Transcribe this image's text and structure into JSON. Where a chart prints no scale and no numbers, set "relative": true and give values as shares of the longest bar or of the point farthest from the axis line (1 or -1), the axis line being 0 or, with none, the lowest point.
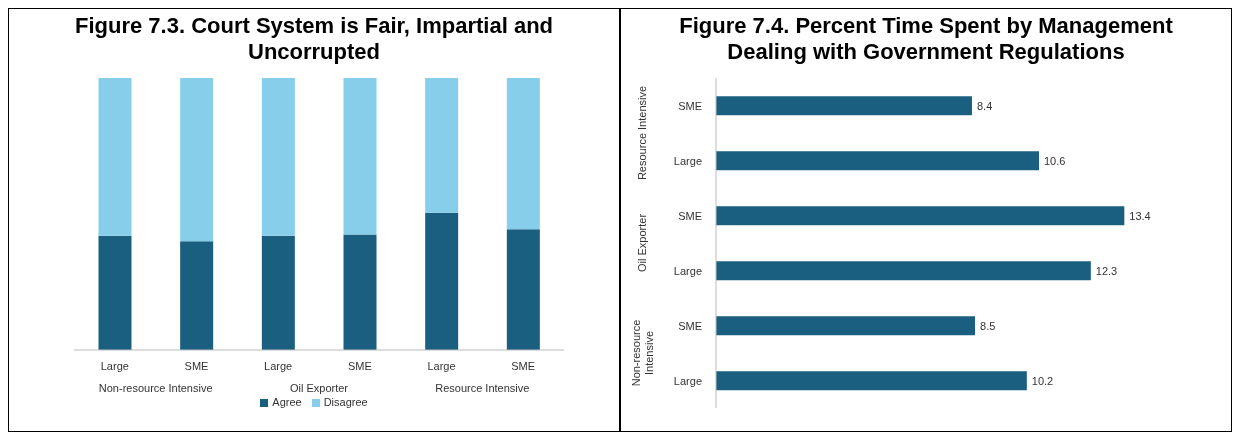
{
  "chart_data": [
    {
      "type": "bar",
      "title": "Figure 7.3. Court System is Fair, Impartial and Uncorrupted",
      "categories": [
        "Large",
        "SME",
        "Large",
        "SME",
        "Large",
        "SME"
      ],
      "stacked": true,
      "relative": true,
      "series": [
        {
          "name": "Agree",
          "color": "#1a5f80",
          "values": [
            0.42,
            0.4,
            0.42,
            0.425,
            0.505,
            0.444
          ]
        },
        {
          "name": "Disagree",
          "color": "#87ceeb",
          "values": [
            0.58,
            0.6,
            0.58,
            0.575,
            0.495,
            0.556
          ]
        }
      ],
      "annotations": [
        "Non-resource Intensive",
        "Oil Exporter",
        "Resource Intensive"
      ],
      "legend": "bottom",
      "grid": false
    },
    {
      "type": "bar",
      "title": "Figure 7.4. Percent Time Spent by Management Dealing with Government Regulations",
      "orientation": "horizontal",
      "categories": [
        "SME",
        "Large",
        "SME",
        "Large",
        "SME",
        "Large"
      ],
      "values": [
        8.4,
        10.6,
        13.4,
        12.3,
        8.5,
        10.2
      ],
      "color": "#1a5f80",
      "data_labels": true,
      "annotations": [
        "Resource Intensive",
        "Oil Exporter",
        "Non-resource Intensive"
      ],
      "grid": false
    }
  ]
}
